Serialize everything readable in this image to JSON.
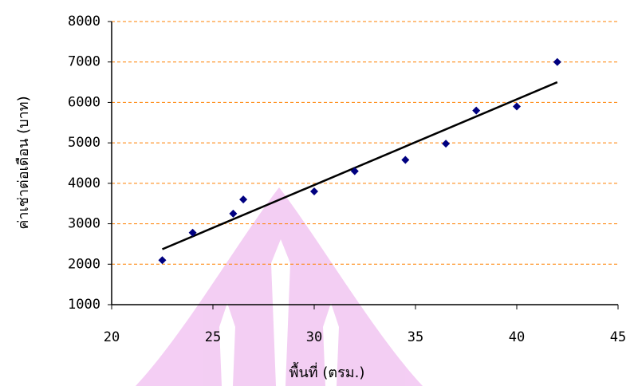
{
  "chart_data": {
    "type": "scatter",
    "x_label": "พื้นที่ (ตรม.)",
    "y_label": "ค่าเช่าต่อเดือน (บาท)",
    "x": [
      22.5,
      24,
      26,
      26.5,
      30,
      32,
      34.5,
      36.5,
      38,
      40,
      42
    ],
    "values": [
      2100,
      2780,
      3250,
      3600,
      3800,
      4300,
      4580,
      4980,
      5800,
      5900,
      7000
    ],
    "color": "#000080",
    "trendline": {
      "x": [
        22.5,
        42
      ],
      "values": [
        2370,
        6500
      ],
      "color": "#000000"
    },
    "xlim": [
      20,
      45
    ],
    "xticks": [
      20,
      25,
      30,
      35,
      40,
      45
    ],
    "ylim": [
      1000,
      8000
    ],
    "yticks": [
      1000,
      2000,
      3000,
      4000,
      5000,
      6000,
      7000,
      8000
    ],
    "grid": true,
    "grid_color": "#ff8000"
  }
}
